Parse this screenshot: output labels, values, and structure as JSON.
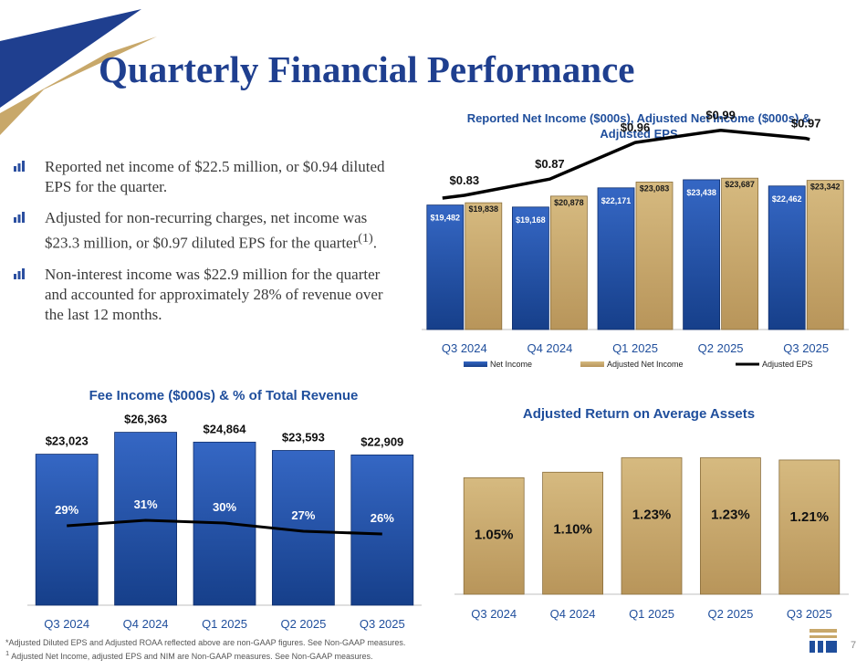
{
  "slide": {
    "title": "Quarterly Financial Performance",
    "page_number": "7"
  },
  "bullets": [
    "Reported net income of $22.5 million, or $0.94 diluted EPS for the quarter.",
    "Adjusted for non-recurring charges, net income was $23.3 million, or $0.97 diluted EPS for the quarter",
    "Non-interest income was $22.9 million for the quarter and accounted for approximately 28% of revenue over the last 12 months."
  ],
  "bullet_footnote_ref": "(1)",
  "footnotes": [
    "*Adjusted Diluted EPS and Adjusted ROAA reflected above are non-GAAP figures.  See Non-GAAP measures.",
    "Adjusted Net Income, adjusted EPS and NIM are Non-GAAP measures.  See Non-GAAP measures."
  ],
  "footnote_marker": "1",
  "colors": {
    "title": "#1f3f8f",
    "navy": "#1f4e9c",
    "gold": "#c8a86a",
    "line": "#000000"
  },
  "chart_data": [
    {
      "type": "bar",
      "title": "Reported Net Income ($000s), Adjusted Net Income ($000s) & Adjusted EPS",
      "categories": [
        "Q3 2024",
        "Q4 2024",
        "Q1 2025",
        "Q2 2025",
        "Q3 2025"
      ],
      "series": [
        {
          "name": "Net Income",
          "values": [
            19482,
            19168,
            22171,
            23438,
            22462
          ],
          "labels": [
            "$19,482",
            "$19,168",
            "$22,171",
            "$23,438",
            "$22,462"
          ]
        },
        {
          "name": "Adjusted Net Income",
          "values": [
            19838,
            20878,
            23083,
            23687,
            23342
          ],
          "labels": [
            "$19,838",
            "$20,878",
            "$23,083",
            "$23,687",
            "$23,342"
          ]
        },
        {
          "name": "Adjusted EPS",
          "type": "line",
          "values": [
            0.83,
            0.87,
            0.96,
            0.99,
            0.97
          ],
          "labels": [
            "$0.83",
            "$0.87",
            "$0.96",
            "$0.99",
            "$0.97"
          ]
        }
      ],
      "legend": [
        "Net Income",
        "Adjusted Net Income",
        "Adjusted EPS"
      ],
      "legend_position": "bottom",
      "ylim": [
        0,
        25000
      ],
      "eps_ylim": [
        0.5,
        1.05
      ]
    },
    {
      "type": "bar",
      "title": "Fee Income ($000s) & % of Total Revenue",
      "categories": [
        "Q3 2024",
        "Q4 2024",
        "Q1 2025",
        "Q2 2025",
        "Q3 2025"
      ],
      "values": [
        23023,
        26363,
        24864,
        23593,
        22909
      ],
      "labels": [
        "$23,023",
        "$26,363",
        "$24,864",
        "$23,593",
        "$22,909"
      ],
      "line": {
        "name": "% of Total Revenue",
        "values": [
          29,
          31,
          30,
          27,
          26
        ],
        "labels": [
          "29%",
          "31%",
          "30%",
          "27%",
          "26%"
        ]
      },
      "ylim": [
        0,
        27000
      ],
      "pct_ylim": [
        0,
        60
      ]
    },
    {
      "type": "bar",
      "title": "Adjusted Return on Average Assets",
      "categories": [
        "Q3 2024",
        "Q4 2024",
        "Q1 2025",
        "Q2 2025",
        "Q3 2025"
      ],
      "values": [
        1.05,
        1.1,
        1.23,
        1.23,
        1.21
      ],
      "labels": [
        "1.05%",
        "1.10%",
        "1.23%",
        "1.23%",
        "1.21%"
      ],
      "ylim": [
        0,
        1.3
      ]
    }
  ]
}
